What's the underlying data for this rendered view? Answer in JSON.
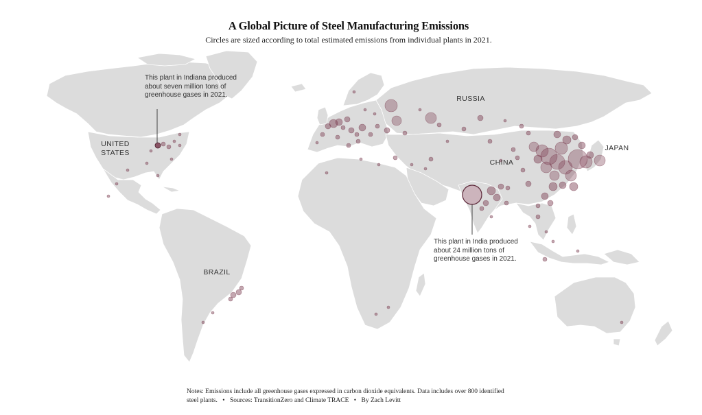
{
  "header": {
    "title": "A Global Picture of Steel Manufacturing Emissions",
    "subtitle": "Circles are sized according to total estimated emissions from individual plants in 2021."
  },
  "map": {
    "land_color": "#dcdcdc",
    "border_color": "#ffffff",
    "bubble_color": "#7a3b4f",
    "labels": {
      "us_line1": "UNITED",
      "us_line2": "STATES",
      "russia": "RUSSIA",
      "china": "CHINA",
      "japan": "JAPAN",
      "brazil": "BRAZIL"
    }
  },
  "annotations": {
    "indiana": "This plant in Indiana produced about seven million tons of greenhouse gases in 2021.",
    "india": "This plant in India produced about 24 million tons of greenhouse gases in 2021."
  },
  "footer": {
    "notes": "Notes: Emissions include all greenhouse gases expressed in carbon dioxide equivalents. Data includes over 800 identified steel plants.",
    "sources": "Sources: TransitionZero and Climate TRACE",
    "byline": "By Zach Levitt",
    "separator": "•"
  }
}
